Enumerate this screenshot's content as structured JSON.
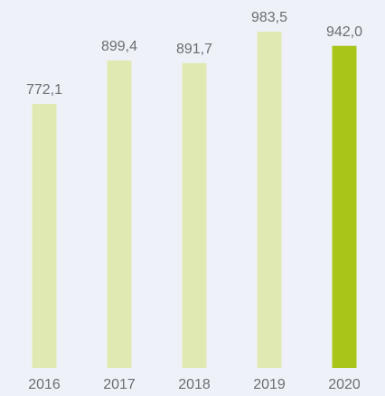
{
  "chart_data": {
    "type": "bar",
    "categories": [
      "2016",
      "2017",
      "2018",
      "2019",
      "2020"
    ],
    "values": [
      772.1,
      899.4,
      891.7,
      983.5,
      942.0
    ],
    "value_labels": [
      "772,1",
      "899,4",
      "891,7",
      "983,5",
      "942,0"
    ],
    "colors": [
      "#e1e9b3",
      "#e1e9b3",
      "#e1e9b3",
      "#e1e9b3",
      "#a9c51a"
    ]
  }
}
